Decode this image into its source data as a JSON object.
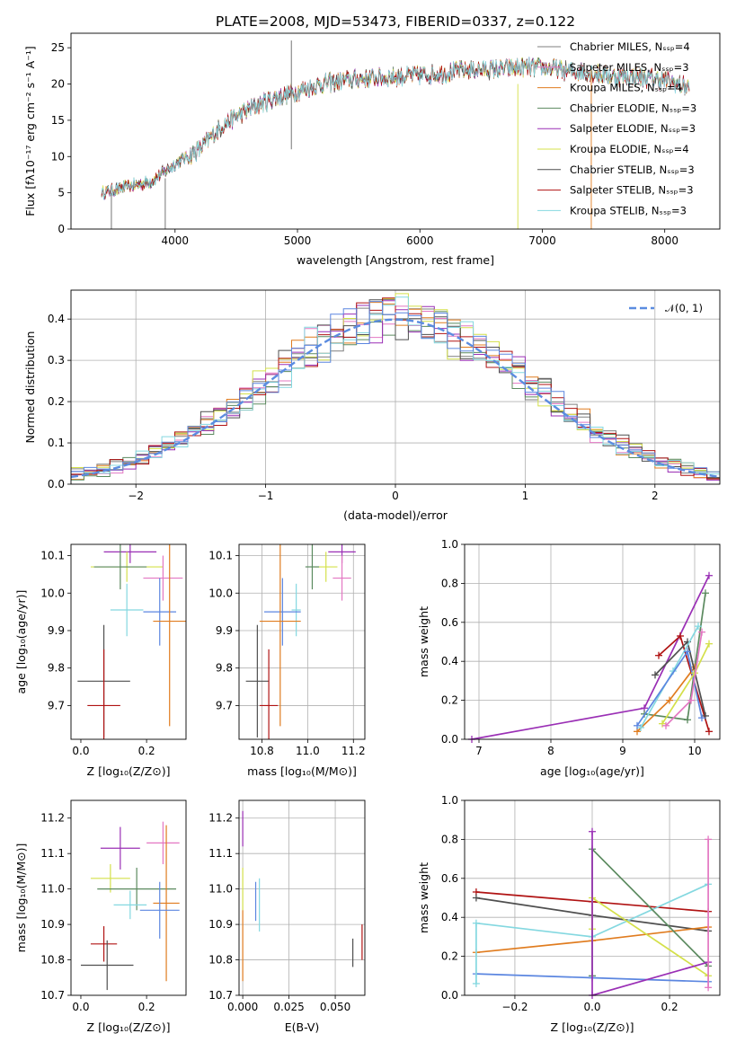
{
  "figure": {
    "title": "PLATE=2008, MJD=53473, FIBERID=0337, z=0.122"
  },
  "colors": {
    "Chabrier MILES": "#7f7f7f",
    "Salpeter MILES": "#e377c2",
    "Kroupa MILES": "#e07c1f",
    "Chabrier ELODIE": "#5b8a5f",
    "Salpeter ELODIE": "#9a2fb5",
    "Kroupa ELODIE": "#d4e04a",
    "Chabrier STELIB": "#4f4f4f",
    "Salpeter STELIB": "#b01313",
    "Kroupa STELIB": "#84d8e0",
    "extra_blue": "#5b86e0",
    "gaussian": "#5b8ce0"
  },
  "chart_data": [
    {
      "id": "spectrum",
      "type": "line",
      "title": "PLATE=2008, MJD=53473, FIBERID=0337, z=0.122",
      "xlabel": "wavelength [Angstrom, rest frame]",
      "ylabel": "Flux [fλ10⁻¹⁷ erg cm⁻² s⁻¹ A⁻¹]",
      "xlim": [
        3150,
        8450
      ],
      "ylim": [
        0,
        27
      ],
      "xticks": [
        "4000",
        "5000",
        "6000",
        "7000",
        "8000"
      ],
      "yticks": [
        "0",
        "5",
        "10",
        "15",
        "20",
        "25"
      ],
      "legend": {
        "placement": "upper right",
        "entries": [
          "Chabrier MILES, Nₛₛₚ=4",
          "Salpeter MILES, Nₛₛₚ=3",
          "Kroupa MILES, Nₛₛₚ=4",
          "Chabrier ELODIE, Nₛₛₚ=3",
          "Salpeter ELODIE, Nₛₛₚ=3",
          "Kroupa ELODIE, Nₛₛₚ=4",
          "Chabrier STELIB, Nₛₛₚ=3",
          "Salpeter STELIB, Nₛₛₚ=3",
          "Kroupa STELIB, Nₛₛₚ=3"
        ],
        "series_keys": [
          "Chabrier MILES",
          "Salpeter MILES",
          "Kroupa MILES",
          "Chabrier ELODIE",
          "Salpeter ELODIE",
          "Kroupa ELODIE",
          "Chabrier STELIB",
          "Salpeter STELIB",
          "Kroupa STELIB"
        ]
      },
      "continuum": {
        "x": [
          3400,
          3600,
          3800,
          4000,
          4200,
          4400,
          4600,
          4800,
          5000,
          5200,
          5400,
          5600,
          5800,
          6000,
          6200,
          6400,
          6600,
          6800,
          7000,
          7200,
          7400,
          7600,
          7800,
          8000,
          8200
        ],
        "y": [
          5,
          5.8,
          6.5,
          9,
          11,
          14.5,
          16.5,
          18,
          19,
          20,
          20.5,
          20.8,
          21,
          21.2,
          21.5,
          22,
          22,
          22.2,
          22.3,
          21.8,
          21.5,
          21,
          21,
          20.5,
          19.5
        ]
      },
      "noise_amplitude": 1.6,
      "spikes": [
        {
          "x": 3480,
          "y0": 0,
          "y1": 5
        },
        {
          "x": 3920,
          "y0": 0,
          "y1": 7
        },
        {
          "x": 4950,
          "y0": 11,
          "y1": 26
        },
        {
          "x": 6800,
          "y0": 0,
          "y1": 20
        },
        {
          "x": 7400,
          "y0": 0,
          "y1": 22
        }
      ]
    },
    {
      "id": "residuals",
      "type": "histogram",
      "xlabel": "(data-model)/error",
      "ylabel": "Normed distribution",
      "xlim": [
        -2.5,
        2.5
      ],
      "ylim": [
        0,
        0.47
      ],
      "xticks": [
        "−2",
        "−1",
        "0",
        "1",
        "2"
      ],
      "yticks": [
        "0.0",
        "0.1",
        "0.2",
        "0.3",
        "0.4"
      ],
      "grid": true,
      "legend": {
        "placement": "upper right",
        "entries": [
          "𝒩(0, 1)"
        ]
      },
      "bin_width": 0.1
    },
    {
      "id": "age_vs_Z",
      "type": "errorbar",
      "xlabel": "Z [log₁₀(Z/Z⊙)]",
      "ylabel": "age  [log₁₀(age/yr)]",
      "xlim": [
        -0.03,
        0.32
      ],
      "ylim": [
        9.61,
        10.13
      ],
      "xticks": [
        "0.0",
        "0.2"
      ],
      "yticks": [
        "9.7",
        "9.8",
        "9.9",
        "10.0",
        "10.1"
      ],
      "points": [
        {
          "series": "Salpeter ELODIE",
          "x": 0.15,
          "xerr": 0.08,
          "y": 10.11,
          "yerr": 0.03
        },
        {
          "series": "Kroupa ELODIE",
          "x": 0.14,
          "xerr": 0.11,
          "y": 10.07,
          "yerr": 0.04
        },
        {
          "series": "Chabrier ELODIE",
          "x": 0.12,
          "xerr": 0.08,
          "y": 10.07,
          "yerr": 0.06
        },
        {
          "series": "Salpeter MILES",
          "x": 0.25,
          "xerr": 0.06,
          "y": 10.04,
          "yerr": 0.06
        },
        {
          "series": "Kroupa STELIB",
          "x": 0.14,
          "xerr": 0.05,
          "y": 9.955,
          "yerr": 0.07
        },
        {
          "series": "extra_blue",
          "x": 0.24,
          "xerr": 0.05,
          "y": 9.95,
          "yerr": 0.09
        },
        {
          "series": "Kroupa MILES",
          "x": 0.27,
          "xerr": 0.05,
          "y": 9.925,
          "yerr": 0.28
        },
        {
          "series": "Chabrier STELIB",
          "x": 0.07,
          "xerr": 0.08,
          "y": 9.765,
          "yerr": 0.15
        },
        {
          "series": "Salpeter STELIB",
          "x": 0.07,
          "xerr": 0.05,
          "y": 9.7,
          "yerr": 0.15
        }
      ]
    },
    {
      "id": "age_vs_mass",
      "type": "errorbar",
      "xlabel": "mass [log₁₀(M/M⊙)]",
      "xlim": [
        10.7,
        11.25
      ],
      "ylim": [
        9.61,
        10.13
      ],
      "xticks": [
        "10.8",
        "11.0",
        "11.2"
      ],
      "yticks": [
        "9.7",
        "9.8",
        "9.9",
        "10.0",
        "10.1"
      ],
      "points": [
        {
          "series": "Salpeter ELODIE",
          "x": 11.15,
          "xerr": 0.06,
          "y": 10.11,
          "yerr": 0.03
        },
        {
          "series": "Kroupa ELODIE",
          "x": 11.08,
          "xerr": 0.05,
          "y": 10.07,
          "yerr": 0.04
        },
        {
          "series": "Chabrier ELODIE",
          "x": 11.02,
          "xerr": 0.03,
          "y": 10.07,
          "yerr": 0.06
        },
        {
          "series": "Salpeter MILES",
          "x": 11.15,
          "xerr": 0.04,
          "y": 10.04,
          "yerr": 0.06
        },
        {
          "series": "Kroupa STELIB",
          "x": 10.95,
          "xerr": 0.02,
          "y": 9.955,
          "yerr": 0.07
        },
        {
          "series": "extra_blue",
          "x": 10.89,
          "xerr": 0.08,
          "y": 9.95,
          "yerr": 0.09
        },
        {
          "series": "Kroupa MILES",
          "x": 10.88,
          "xerr": 0.09,
          "y": 9.925,
          "yerr": 0.28
        },
        {
          "series": "Chabrier STELIB",
          "x": 10.78,
          "xerr": 0.05,
          "y": 9.765,
          "yerr": 0.15
        },
        {
          "series": "Salpeter STELIB",
          "x": 10.83,
          "xerr": 0.04,
          "y": 9.7,
          "yerr": 0.15
        }
      ]
    },
    {
      "id": "weight_vs_age",
      "type": "line",
      "xlabel": "age  [log₁₀(age/yr)]",
      "ylabel": "mass weight",
      "xlim": [
        6.8,
        10.35
      ],
      "ylim": [
        0,
        1
      ],
      "xticks": [
        "7",
        "8",
        "9",
        "10"
      ],
      "yticks": [
        "0.0",
        "0.2",
        "0.4",
        "0.6",
        "0.8",
        "1.0"
      ],
      "grid": true,
      "series": [
        {
          "key": "Salpeter ELODIE",
          "x": [
            6.9,
            9.3,
            10.2
          ],
          "y": [
            0.0,
            0.16,
            0.84
          ]
        },
        {
          "key": "Chabrier ELODIE",
          "x": [
            9.3,
            9.9,
            10.15
          ],
          "y": [
            0.13,
            0.1,
            0.75
          ]
        },
        {
          "key": "Kroupa MILES",
          "x": [
            9.2,
            9.65,
            10.0
          ],
          "y": [
            0.04,
            0.2,
            0.37
          ]
        },
        {
          "key": "Salpeter STELIB",
          "x": [
            9.5,
            9.8,
            10.2
          ],
          "y": [
            0.43,
            0.53,
            0.04
          ]
        },
        {
          "key": "Chabrier STELIB",
          "x": [
            9.45,
            9.9,
            10.15
          ],
          "y": [
            0.33,
            0.5,
            0.12
          ]
        },
        {
          "key": "Kroupa STELIB",
          "x": [
            9.25,
            9.7,
            10.05
          ],
          "y": [
            0.06,
            0.35,
            0.58
          ]
        },
        {
          "key": "extra_blue",
          "x": [
            9.2,
            9.9,
            10.1
          ],
          "y": [
            0.07,
            0.45,
            0.11
          ]
        },
        {
          "key": "Kroupa ELODIE",
          "x": [
            9.55,
            10.0,
            10.2
          ],
          "y": [
            0.08,
            0.34,
            0.49
          ]
        },
        {
          "key": "Salpeter MILES",
          "x": [
            9.6,
            9.95,
            10.1
          ],
          "y": [
            0.07,
            0.2,
            0.55
          ]
        }
      ]
    },
    {
      "id": "mass_vs_Z",
      "type": "errorbar",
      "xlabel": "Z [log₁₀(Z/Z⊙)]",
      "ylabel": "mass [log₁₀(M/M⊙)]",
      "xlim": [
        -0.03,
        0.32
      ],
      "ylim": [
        10.7,
        11.25
      ],
      "xticks": [
        "0.0",
        "0.2"
      ],
      "yticks": [
        "10.7",
        "10.8",
        "10.9",
        "11.0",
        "11.1",
        "11.2"
      ],
      "points": [
        {
          "series": "Salpeter ELODIE",
          "x": 0.12,
          "xerr": 0.06,
          "y": 11.115,
          "yerr": 0.06
        },
        {
          "series": "Salpeter MILES",
          "x": 0.25,
          "xerr": 0.05,
          "y": 11.13,
          "yerr": 0.06
        },
        {
          "series": "Kroupa ELODIE",
          "x": 0.09,
          "xerr": 0.06,
          "y": 11.03,
          "yerr": 0.04
        },
        {
          "series": "Chabrier ELODIE",
          "x": 0.17,
          "xerr": 0.12,
          "y": 11.0,
          "yerr": 0.06
        },
        {
          "series": "Kroupa STELIB",
          "x": 0.15,
          "xerr": 0.05,
          "y": 10.955,
          "yerr": 0.04
        },
        {
          "series": "Kroupa MILES",
          "x": 0.26,
          "xerr": 0.04,
          "y": 10.96,
          "yerr": 0.22
        },
        {
          "series": "extra_blue",
          "x": 0.24,
          "xerr": 0.06,
          "y": 10.94,
          "yerr": 0.08
        },
        {
          "series": "Salpeter STELIB",
          "x": 0.07,
          "xerr": 0.04,
          "y": 10.845,
          "yerr": 0.05
        },
        {
          "series": "Chabrier STELIB",
          "x": 0.08,
          "xerr": 0.08,
          "y": 10.785,
          "yerr": 0.07
        }
      ]
    },
    {
      "id": "mass_vs_EBV",
      "type": "errorbar",
      "xlabel": "E(B-V)",
      "xlim": [
        -0.002,
        0.066
      ],
      "ylim": [
        10.7,
        11.25
      ],
      "xticks": [
        "0.000",
        "0.025",
        "0.050"
      ],
      "yticks": [
        "10.7",
        "10.8",
        "10.9",
        "11.0",
        "11.1",
        "11.2"
      ],
      "points": [
        {
          "series": "Salpeter ELODIE",
          "x": 0.0,
          "xerr": 0.0,
          "y": 11.17,
          "yerr": 0.05
        },
        {
          "series": "Kroupa ELODIE",
          "x": 0.0,
          "xerr": 0.0,
          "y": 11.0,
          "yerr": 0.06
        },
        {
          "series": "Kroupa MILES",
          "x": 0.0,
          "xerr": 0.0,
          "y": 10.84,
          "yerr": 0.1
        },
        {
          "series": "extra_blue",
          "x": 0.007,
          "xerr": 0.0,
          "y": 10.965,
          "yerr": 0.055
        },
        {
          "series": "Kroupa STELIB",
          "x": 0.009,
          "xerr": 0.0,
          "y": 10.955,
          "yerr": 0.075
        },
        {
          "series": "Chabrier STELIB",
          "x": 0.0595,
          "xerr": 0.0,
          "y": 10.82,
          "yerr": 0.04
        },
        {
          "series": "Salpeter STELIB",
          "x": 0.0645,
          "xerr": 0.0,
          "y": 10.85,
          "yerr": 0.05
        }
      ]
    },
    {
      "id": "weight_vs_Z",
      "type": "line",
      "xlabel": "Z [log₁₀(Z/Z⊙)]",
      "ylabel": "mass weight",
      "xlim": [
        -0.33,
        0.33
      ],
      "ylim": [
        0,
        1
      ],
      "xticks": [
        "−0.2",
        "0.0",
        "0.2"
      ],
      "yticks": [
        "0.0",
        "0.2",
        "0.4",
        "0.6",
        "0.8",
        "1.0"
      ],
      "grid": true,
      "series": [
        {
          "key": "Salpeter STELIB",
          "x": [
            -0.3,
            0.0,
            0.3
          ],
          "y": [
            0.53,
            0.48,
            0.43
          ]
        },
        {
          "key": "Chabrier STELIB",
          "x": [
            -0.3,
            0.0,
            0.3
          ],
          "y": [
            0.5,
            0.41,
            0.33
          ]
        },
        {
          "key": "Kroupa MILES",
          "x": [
            -0.3,
            0.0,
            0.3
          ],
          "y": [
            0.22,
            0.28,
            0.35
          ]
        },
        {
          "key": "extra_blue",
          "x": [
            -0.3,
            0.0,
            0.3
          ],
          "y": [
            0.11,
            0.09,
            0.07
          ]
        },
        {
          "key": "Kroupa STELIB",
          "x": [
            -0.3,
            -0.3,
            0.0,
            0.3
          ],
          "y": [
            0.06,
            0.37,
            0.3,
            0.57
          ]
        },
        {
          "key": "Chabrier ELODIE",
          "x": [
            0.0,
            0.0,
            0.3
          ],
          "y": [
            0.1,
            0.75,
            0.15
          ]
        },
        {
          "key": "Kroupa ELODIE",
          "x": [
            0.0,
            0.0,
            0.3
          ],
          "y": [
            0.34,
            0.5,
            0.1
          ]
        },
        {
          "key": "Salpeter ELODIE",
          "x": [
            0.0,
            0.0,
            0.3
          ],
          "y": [
            0.84,
            0.0,
            0.17
          ]
        },
        {
          "key": "Salpeter MILES",
          "x": [
            0.3,
            0.3
          ],
          "y": [
            0.04,
            0.8
          ]
        }
      ]
    }
  ]
}
